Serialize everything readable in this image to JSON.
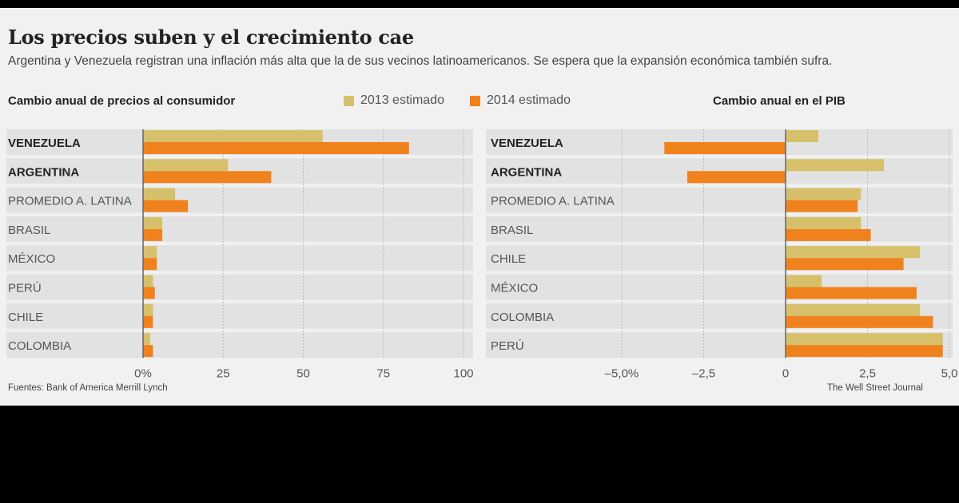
{
  "title": "Los precios suben y el crecimiento cae",
  "subtitle": "Argentina y Venezuela registran una inflación más alta que la de sus vecinos latinoamericanos. Se espera que la expansión económica también sufra.",
  "legend": [
    {
      "label": "2013 estimado",
      "color": "#d6c06c"
    },
    {
      "label": "2014 estimado",
      "color": "#f0821e"
    }
  ],
  "source": "Fuentes: Bank of America Merrill Lynch",
  "credit": "The Well Street Journal",
  "chart_data": [
    {
      "type": "bar",
      "orientation": "horizontal",
      "title": "Cambio anual de precios al consumidor",
      "categories": [
        "VENEZUELA",
        "ARGENTINA",
        "PROMEDIO A. LATINA",
        "BRASIL",
        "MÉXICO",
        "PERÚ",
        "CHILE",
        "COLOMBIA"
      ],
      "bold_categories": [
        "VENEZUELA",
        "ARGENTINA"
      ],
      "series": [
        {
          "name": "2013 estimado",
          "values": [
            56,
            26.5,
            10,
            6,
            4.3,
            3.1,
            3.1,
            2.2
          ]
        },
        {
          "name": "2014 estimado",
          "values": [
            83,
            40,
            14,
            6,
            4.3,
            3.7,
            3.1,
            3.1
          ]
        }
      ],
      "xlim": [
        0,
        100
      ],
      "ticks": [
        0,
        25,
        50,
        75,
        100
      ],
      "tick_labels": [
        "0%",
        "25",
        "50",
        "75",
        "100"
      ],
      "grid": true
    },
    {
      "type": "bar",
      "orientation": "horizontal",
      "title": "Cambio anual en el PIB",
      "categories": [
        "VENEZUELA",
        "ARGENTINA",
        "PROMEDIO A. LATINA",
        "BRASIL",
        "CHILE",
        "MÉXICO",
        "COLOMBIA",
        "PERÚ"
      ],
      "bold_categories": [
        "VENEZUELA",
        "ARGENTINA"
      ],
      "series": [
        {
          "name": "2013 estimado",
          "values": [
            1.0,
            3.0,
            2.3,
            2.3,
            4.1,
            1.1,
            4.1,
            4.8
          ]
        },
        {
          "name": "2014 estimado",
          "values": [
            -3.7,
            -3.0,
            2.2,
            2.6,
            3.6,
            4.0,
            4.5,
            4.8
          ]
        }
      ],
      "xlim": [
        -5.0,
        5.0
      ],
      "ticks": [
        -5.0,
        -2.5,
        0,
        2.5,
        5.0
      ],
      "tick_labels": [
        "–5,0%",
        "–2,5",
        "0",
        "2,5",
        "5,0"
      ],
      "grid": true
    }
  ]
}
